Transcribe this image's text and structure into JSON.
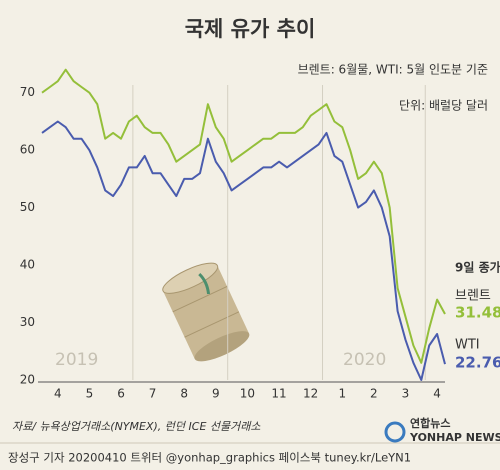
{
  "chart_data": {
    "type": "line",
    "title": "국제 유가 추이",
    "subtitle": "브렌트: 6월물, WTI: 5월 인도분 기준",
    "unit": "단위: 배럴당 달러",
    "annotations": {
      "close": "9일 종가",
      "year_start": "2019",
      "year_end": "2020"
    },
    "source": "자료/ 뉴욕상업거래소(NYMEX), 런던 ICE 선물거래소",
    "credit": "장성구 기자  20200410 트위터 @yonhap_graphics  페이스북 tuney.kr/LeYN1",
    "logo": {
      "name": "연합뉴스",
      "english": "YONHAP NEWS"
    },
    "categories": [
      null,
      null,
      "4",
      null,
      null,
      null,
      "5",
      null,
      null,
      null,
      "6",
      null,
      null,
      null,
      "7",
      null,
      null,
      null,
      "8",
      null,
      null,
      null,
      "9",
      null,
      null,
      null,
      "10",
      null,
      null,
      null,
      "11",
      null,
      null,
      null,
      "12",
      null,
      null,
      null,
      "1",
      null,
      null,
      null,
      "2",
      null,
      null,
      null,
      "3",
      null,
      null,
      null,
      "4",
      null
    ],
    "series": [
      {
        "name": "브렌트",
        "color": "#94bf3a",
        "values": [
          70,
          71,
          72,
          74,
          72,
          71,
          70,
          68,
          62,
          63,
          62,
          65,
          66,
          64,
          63,
          63,
          61,
          58,
          59,
          60,
          61,
          68,
          64,
          62,
          58,
          59,
          60,
          61,
          62,
          62,
          63,
          63,
          63,
          64,
          66,
          67,
          68,
          65,
          64,
          60,
          55,
          56,
          58,
          56,
          50,
          36,
          31,
          26,
          23,
          29,
          34,
          31.48
        ]
      },
      {
        "name": "WTI",
        "color": "#4a5cae",
        "values": [
          63,
          64,
          65,
          64,
          62,
          62,
          60,
          57,
          53,
          52,
          54,
          57,
          57,
          59,
          56,
          56,
          54,
          52,
          55,
          55,
          56,
          62,
          58,
          56,
          53,
          54,
          55,
          56,
          57,
          57,
          58,
          57,
          58,
          59,
          60,
          61,
          63,
          59,
          58,
          54,
          50,
          51,
          53,
          50,
          45,
          32,
          27,
          23,
          20,
          26,
          28,
          22.76
        ]
      }
    ],
    "ylim": [
      20,
      75
    ],
    "yticks": [
      20,
      30,
      40,
      50,
      60,
      70
    ],
    "grid": false
  }
}
